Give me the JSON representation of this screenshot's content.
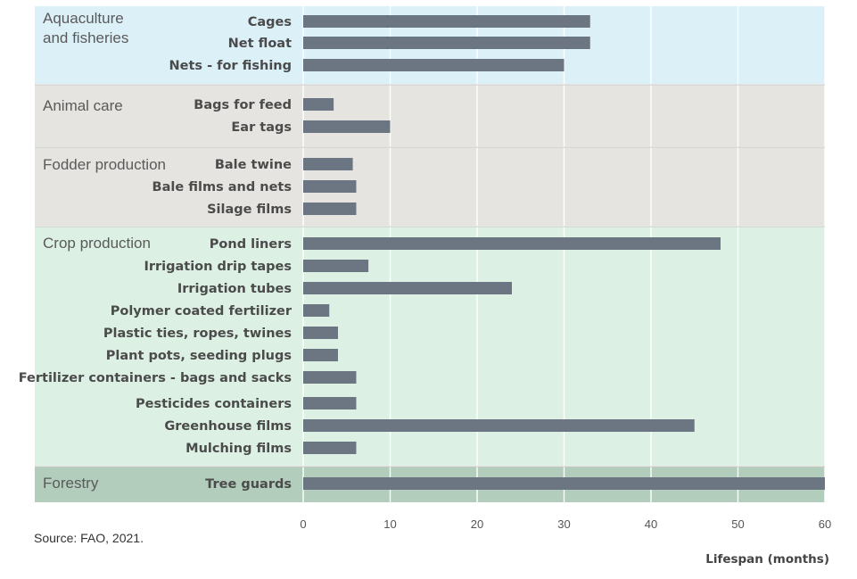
{
  "chart_data": {
    "type": "bar",
    "orientation": "horizontal",
    "xlabel": "Lifespan (months)",
    "xlim": [
      0,
      60
    ],
    "xticks": [
      0,
      10,
      20,
      30,
      40,
      50,
      60
    ],
    "grid": true,
    "bar_color": "#6b7682",
    "groups": [
      {
        "name": "Aquaculture\nand fisheries",
        "bg": "#dcf0f8",
        "items": [
          {
            "label": "Cages",
            "value": 33
          },
          {
            "label": "Net float",
            "value": 33
          },
          {
            "label": "Nets - for fishing",
            "value": 30
          }
        ]
      },
      {
        "name": "Animal care",
        "bg": "#e5e4e0",
        "items": [
          {
            "label": "Bags for feed",
            "value": 3.5
          },
          {
            "label": "Ear tags",
            "value": 10
          }
        ]
      },
      {
        "name": "Fodder production",
        "bg": "#e5e4e0",
        "items": [
          {
            "label": "Bale twine",
            "value": 5.7
          },
          {
            "label": "Bale films and nets",
            "value": 6.1
          },
          {
            "label": "Silage films",
            "value": 6.1
          }
        ]
      },
      {
        "name": "Crop production",
        "bg": "#dcf1e4",
        "items": [
          {
            "label": "Pond liners",
            "value": 48
          },
          {
            "label": "Irrigation drip tapes",
            "value": 7.5
          },
          {
            "label": "Irrigation tubes",
            "value": 24
          },
          {
            "label": "Polymer coated fertilizer",
            "value": 3
          },
          {
            "label": "Plastic ties, ropes, twines",
            "value": 4
          },
          {
            "label": "Plant pots, seeding plugs",
            "value": 4
          },
          {
            "label": "Fertilizer containers - bags and sacks",
            "value": 6.1
          },
          {
            "label": "Pesticides containers",
            "value": 6.1
          },
          {
            "label": "Greenhouse films",
            "value": 45
          },
          {
            "label": "Mulching films",
            "value": 6.1
          }
        ]
      },
      {
        "name": "Forestry",
        "bg": "#b3cdbd",
        "items": [
          {
            "label": "Tree guards",
            "value": 60
          }
        ]
      }
    ]
  },
  "source": "Source: FAO, 2021."
}
